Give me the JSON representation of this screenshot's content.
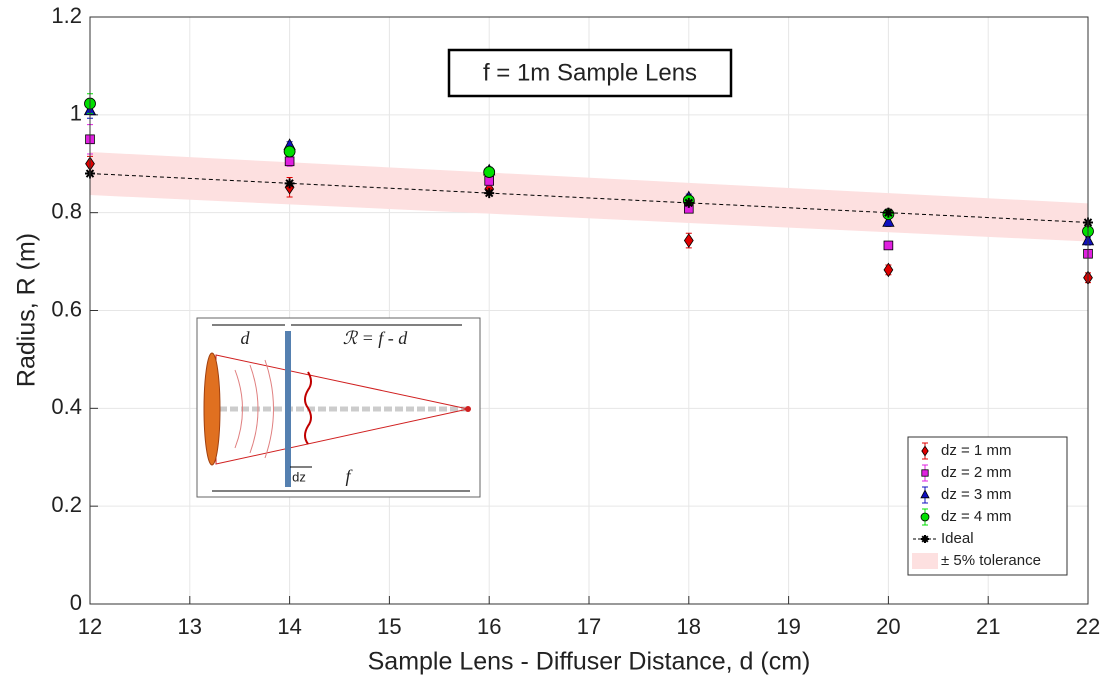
{
  "chart_data": {
    "type": "scatter",
    "annotation": "f = 1m Sample Lens",
    "xlabel": "Sample Lens - Diffuser Distance, d (cm)",
    "ylabel": "Radius, R (m)",
    "x": [
      12,
      14,
      16,
      18,
      20,
      22
    ],
    "xlim": [
      12,
      22
    ],
    "xticks": [
      12,
      13,
      14,
      15,
      16,
      17,
      18,
      19,
      20,
      21,
      22
    ],
    "ylim": [
      0,
      1.2
    ],
    "yticks": [
      0,
      0.2,
      0.4,
      0.6,
      0.8,
      1,
      1.2
    ],
    "grid": true,
    "legend": "lower right",
    "series": [
      {
        "name": "dz = 1 mm",
        "color": "#e00000",
        "marker": "diamond",
        "values": [
          0.9,
          0.852,
          0.848,
          0.743,
          0.683,
          0.667
        ],
        "errors": [
          0.015,
          0.02,
          0.012,
          0.015,
          0.01,
          0.01
        ]
      },
      {
        "name": "dz = 2 mm",
        "color": "#e020e0",
        "marker": "square",
        "values": [
          0.95,
          0.905,
          0.865,
          0.808,
          0.733,
          0.716
        ],
        "errors": [
          0.03,
          0.01,
          0.01,
          0.008,
          0.006,
          0.006
        ]
      },
      {
        "name": "dz = 3 mm",
        "color": "#1010c0",
        "marker": "triangle",
        "values": [
          1.008,
          0.937,
          0.885,
          0.83,
          0.78,
          0.742
        ],
        "errors": [
          0.015,
          0.008,
          0.008,
          0.008,
          0.008,
          0.008
        ]
      },
      {
        "name": "dz = 4 mm",
        "color": "#00e000",
        "marker": "circle",
        "values": [
          1.023,
          0.925,
          0.883,
          0.825,
          0.797,
          0.762
        ],
        "errors": [
          0.02,
          0.01,
          0.01,
          0.008,
          0.008,
          0.008
        ]
      }
    ],
    "ideal": {
      "name": "Ideal",
      "color": "#000000",
      "values": [
        0.88,
        0.86,
        0.84,
        0.82,
        0.8,
        0.78
      ]
    },
    "band": {
      "name": "± 5% tolerance",
      "color": "#fde0e0",
      "lower": [
        0.836,
        0.817,
        0.798,
        0.779,
        0.76,
        0.741
      ],
      "upper": [
        0.924,
        0.903,
        0.882,
        0.861,
        0.84,
        0.819
      ]
    },
    "inset_labels": [
      "d",
      "ℛ = f - d",
      "dz",
      "f"
    ]
  }
}
